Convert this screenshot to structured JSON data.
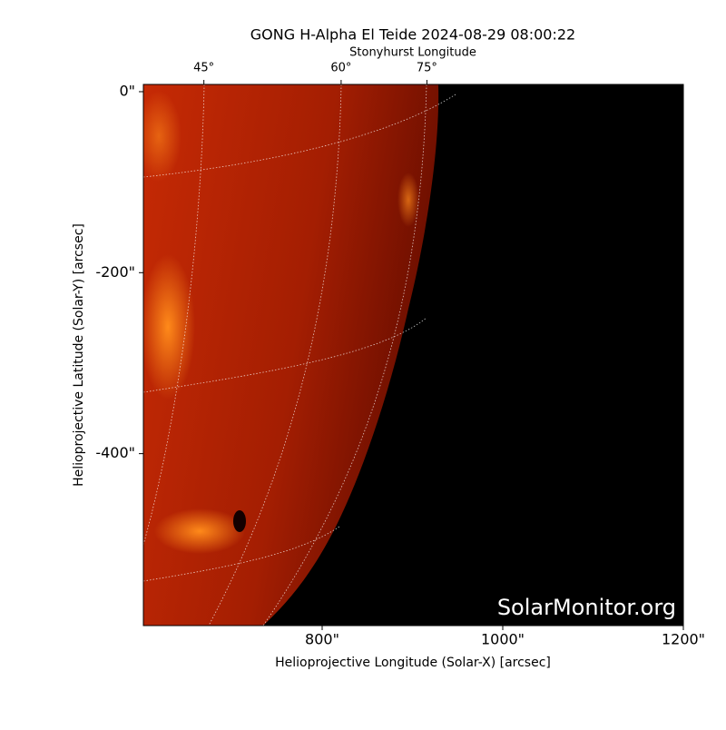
{
  "chart_data": {
    "type": "image",
    "title": "GONG H-Alpha El Teide 2024-08-29 08:00:22",
    "xlabel": "Helioprojective Longitude (Solar-X) [arcsec]",
    "ylabel": "Helioprojective Latitude (Solar-Y) [arcsec]",
    "top_axis": {
      "label": "Stonyhurst Longitude",
      "ticks": [
        {
          "value": 669,
          "label": "45°"
        },
        {
          "value": 821,
          "label": "60°"
        },
        {
          "value": 916,
          "label": "75°"
        }
      ]
    },
    "annotation": "SolarMonitor.org",
    "xlim": [
      602,
      1200
    ],
    "ylim": [
      -590,
      8
    ],
    "xticks": [
      {
        "value": 800,
        "label": "800\""
      },
      {
        "value": 1000,
        "label": "1000\""
      },
      {
        "value": 1200,
        "label": "1200\""
      }
    ],
    "yticks": [
      {
        "value": 0,
        "label": "0\""
      },
      {
        "value": -200,
        "label": "-200\""
      },
      {
        "value": -400,
        "label": "-400\""
      }
    ]
  }
}
